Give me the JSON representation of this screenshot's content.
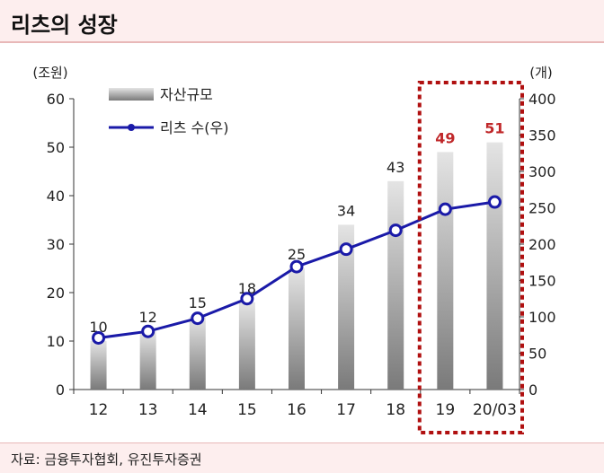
{
  "title": "리츠의 성장",
  "source": "자료: 금융투자협회, 유진투자증권",
  "colors": {
    "line": "#1a1aa8",
    "marker_fill": "#ffffff",
    "highlight_box": "#b01010",
    "highlight_label": "#c0282a",
    "bar_top": "#e4e4e4",
    "bar_bottom": "#7a7a7a"
  },
  "chart_data": {
    "type": "bar",
    "categories": [
      "12",
      "13",
      "14",
      "15",
      "16",
      "17",
      "18",
      "19",
      "20/03"
    ],
    "left_unit": "(조원)",
    "right_unit": "(개)",
    "ylim_left": [
      0,
      60
    ],
    "yticks_left": [
      "0",
      "10",
      "20",
      "30",
      "40",
      "50",
      "60"
    ],
    "ylim_right": [
      0,
      400
    ],
    "yticks_right": [
      "0",
      "50",
      "100",
      "150",
      "200",
      "250",
      "300",
      "350",
      "400"
    ],
    "grid": false,
    "legend_position": "top-left",
    "highlight_categories": [
      "19",
      "20/03"
    ],
    "series": [
      {
        "name": "자산규모",
        "kind": "bar",
        "axis": "left",
        "values": [
          10,
          12,
          15,
          18,
          25,
          34,
          43,
          49,
          51
        ],
        "labels": [
          "10",
          "12",
          "15",
          "18",
          "25",
          "34",
          "43",
          "49",
          "51"
        ]
      },
      {
        "name": "리츠 수(우)",
        "kind": "line",
        "axis": "right",
        "values": [
          71,
          80,
          98,
          125,
          169,
          193,
          219,
          248,
          258
        ]
      }
    ]
  }
}
